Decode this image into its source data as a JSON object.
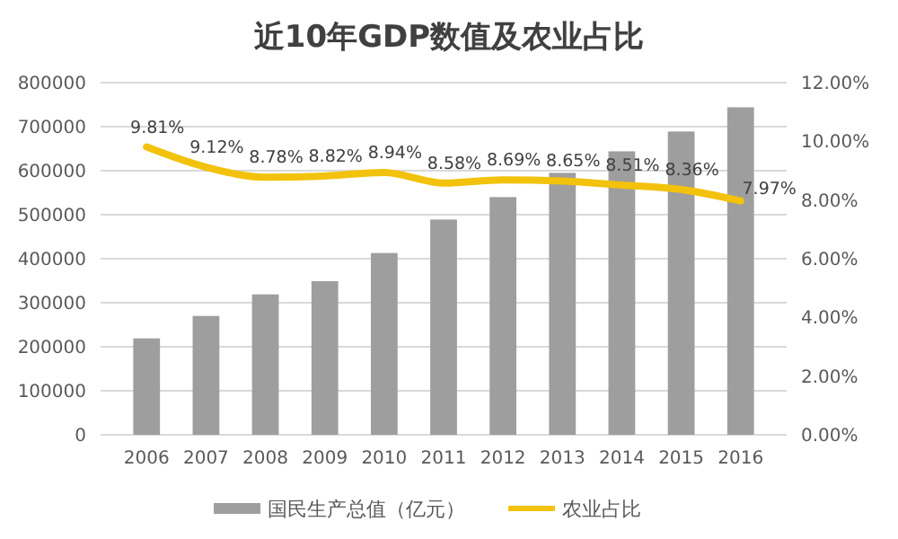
{
  "chart_data": {
    "type": "bar",
    "title": "近10年GDP数值及农业占比",
    "categories": [
      "2006",
      "2007",
      "2008",
      "2009",
      "2010",
      "2011",
      "2012",
      "2013",
      "2014",
      "2015",
      "2016"
    ],
    "series": [
      {
        "name": "国民生产总值（亿元）",
        "color": "#9e9e9e",
        "values": [
          219000,
          270000,
          319000,
          349000,
          413000,
          489000,
          540000,
          595000,
          644000,
          689000,
          744000
        ]
      },
      {
        "name": "农业占比",
        "type": "line",
        "axis": "y2",
        "color": "#f2c20c",
        "values": [
          9.81,
          9.12,
          8.78,
          8.82,
          8.94,
          8.58,
          8.69,
          8.65,
          8.51,
          8.36,
          7.97
        ],
        "value_labels": [
          "9.81%",
          "9.12%",
          "8.78%",
          "8.82%",
          "8.94%",
          "8.58%",
          "8.69%",
          "8.65%",
          "8.51%",
          "8.36%",
          "7.97%"
        ]
      }
    ],
    "ylim": [
      0,
      800000
    ],
    "yticks": [
      0,
      100000,
      200000,
      300000,
      400000,
      500000,
      600000,
      700000,
      800000
    ],
    "y2lim": [
      0,
      12
    ],
    "y2ticks": [
      {
        "value": 0,
        "label": "0.00%"
      },
      {
        "value": 2,
        "label": "2.00%"
      },
      {
        "value": 4,
        "label": "4.00%"
      },
      {
        "value": 6,
        "label": "6.00%"
      },
      {
        "value": 8,
        "label": "8.00%"
      },
      {
        "value": 10,
        "label": "10.00%"
      },
      {
        "value": 12,
        "label": "12.00%"
      }
    ],
    "grid": "y",
    "legend": "bottom"
  }
}
